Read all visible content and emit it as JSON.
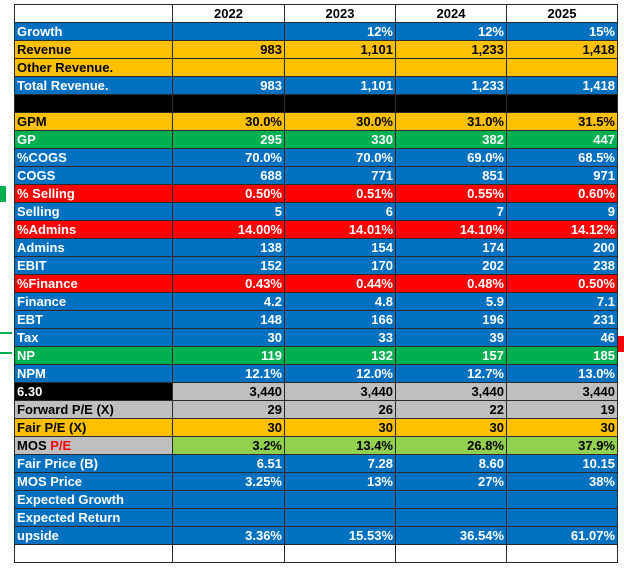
{
  "colors": {
    "blue": "#0070c0",
    "orange": "#ffc000",
    "green": "#00b050",
    "red": "#ff0000",
    "black": "#000000",
    "gray": "#bfbfbf",
    "lime": "#92d050"
  },
  "years": [
    "2022",
    "2023",
    "2024",
    "2025"
  ],
  "rows": [
    {
      "label": "Growth",
      "values": [
        "",
        "12%",
        "12%",
        "15%"
      ],
      "color": "blue"
    },
    {
      "label": "Revenue",
      "values": [
        "983",
        "1,101",
        "1,233",
        "1,418"
      ],
      "color": "orange"
    },
    {
      "label": "Other Revenue.",
      "values": [
        "",
        "",
        "",
        ""
      ],
      "color": "orange"
    },
    {
      "label": "Total Revenue.",
      "values": [
        "983",
        "1,101",
        "1,233",
        "1,418"
      ],
      "color": "blue"
    },
    {
      "label": "",
      "values": [
        "",
        "",
        "",
        ""
      ],
      "color": "black"
    },
    {
      "label": "GPM",
      "values": [
        "30.0%",
        "30.0%",
        "31.0%",
        "31.5%"
      ],
      "color": "orange"
    },
    {
      "label": "GP",
      "values": [
        "295",
        "330",
        "382",
        "447"
      ],
      "color": "green"
    },
    {
      "label": "%COGS",
      "values": [
        "70.0%",
        "70.0%",
        "69.0%",
        "68.5%"
      ],
      "color": "blue"
    },
    {
      "label": "COGS",
      "values": [
        "688",
        "771",
        "851",
        "971"
      ],
      "color": "blue"
    },
    {
      "label": "% Selling",
      "values": [
        "0.50%",
        "0.51%",
        "0.55%",
        "0.60%"
      ],
      "color": "red"
    },
    {
      "label": "Selling",
      "values": [
        "5",
        "6",
        "7",
        "9"
      ],
      "color": "blue"
    },
    {
      "label": "%Admins",
      "values": [
        "14.00%",
        "14.01%",
        "14.10%",
        "14.12%"
      ],
      "color": "red"
    },
    {
      "label": "Admins",
      "values": [
        "138",
        "154",
        "174",
        "200"
      ],
      "color": "blue"
    },
    {
      "label": "EBIT",
      "values": [
        "152",
        "170",
        "202",
        "238"
      ],
      "color": "blue"
    },
    {
      "label": "%Finance",
      "values": [
        "0.43%",
        "0.44%",
        "0.48%",
        "0.50%"
      ],
      "color": "red"
    },
    {
      "label": "Finance",
      "values": [
        "4.2",
        "4.8",
        "5.9",
        "7.1"
      ],
      "color": "blue"
    },
    {
      "label": "EBT",
      "values": [
        "148",
        "166",
        "196",
        "231"
      ],
      "color": "blue"
    },
    {
      "label": "Tax",
      "values": [
        "30",
        "33",
        "39",
        "46"
      ],
      "color": "blue"
    },
    {
      "label": "NP",
      "values": [
        "119",
        "132",
        "157",
        "185"
      ],
      "color": "green"
    },
    {
      "label": "NPM",
      "values": [
        "12.1%",
        "12.0%",
        "12.7%",
        "13.0%"
      ],
      "color": "blue"
    },
    {
      "label": "6.30",
      "values": [
        "3,440",
        "3,440",
        "3,440",
        "3,440"
      ],
      "color": "black",
      "valcolor": "gray"
    },
    {
      "label": "Forward P/E (X)",
      "values": [
        "29",
        "26",
        "22",
        "19"
      ],
      "color": "gray"
    },
    {
      "label": "Fair P/E (X)",
      "values": [
        "30",
        "30",
        "30",
        "30"
      ],
      "color": "orange"
    },
    {
      "label": "MOS",
      "label_red": "P/E",
      "values": [
        "3.2%",
        "13.4%",
        "26.8%",
        "37.9%"
      ],
      "color": "gray",
      "valcolor": "lime"
    },
    {
      "label": "Fair Price (B)",
      "values": [
        "6.51",
        "7.28",
        "8.60",
        "10.15"
      ],
      "color": "blue"
    },
    {
      "label": "MOS Price",
      "values": [
        "3.25%",
        "13%",
        "27%",
        "38%"
      ],
      "color": "blue"
    },
    {
      "label": "Expected Growth",
      "values": [
        "",
        "",
        "",
        ""
      ],
      "color": "blue"
    },
    {
      "label": "Expected Return",
      "values": [
        "",
        "",
        "",
        ""
      ],
      "color": "blue"
    },
    {
      "label": "upside",
      "values": [
        "3.36%",
        "15.53%",
        "36.54%",
        "61.07%"
      ],
      "color": "blue"
    },
    {
      "label": "",
      "values": [
        "",
        "",
        "",
        ""
      ],
      "color": "white"
    }
  ]
}
